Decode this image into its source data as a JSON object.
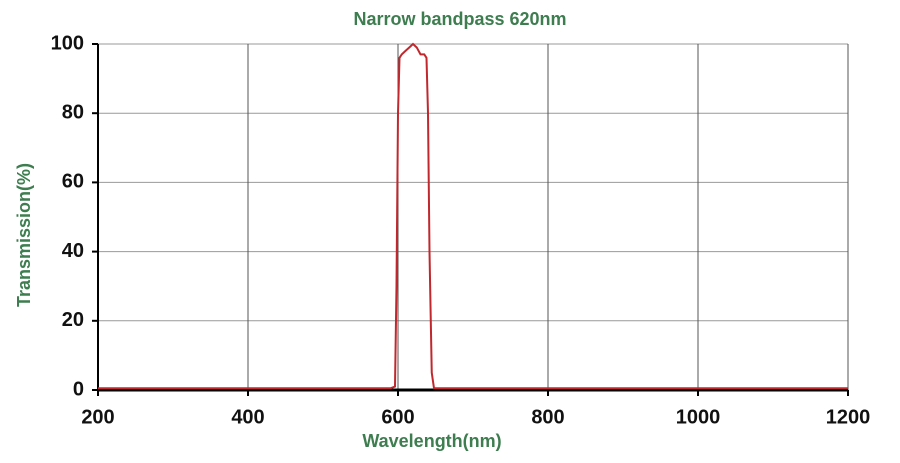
{
  "chart_data": {
    "type": "line",
    "title": "Narrow bandpass 620nm",
    "x_label": "Wavelength(nm)",
    "y_label": "Transmission(%)",
    "x": [
      200,
      590,
      596,
      598,
      600,
      602,
      605,
      610,
      615,
      620,
      625,
      630,
      635,
      638,
      640,
      642,
      645,
      648,
      655,
      700,
      1200
    ],
    "series": [
      {
        "name": "Transmission",
        "color": "#c0282d",
        "values": [
          0.5,
          0.5,
          1,
          30,
          80,
          96,
          97,
          98,
          99,
          100,
          99,
          97,
          97,
          96,
          80,
          40,
          5,
          0.5,
          0.5,
          0.5,
          0.5
        ]
      }
    ],
    "xlim": [
      200,
      1200
    ],
    "xticks": [
      200,
      400,
      600,
      800,
      1000,
      1200
    ],
    "ylim": [
      0,
      100
    ],
    "yticks": [
      0,
      20,
      40,
      60,
      80,
      100
    ],
    "grid": true
  }
}
